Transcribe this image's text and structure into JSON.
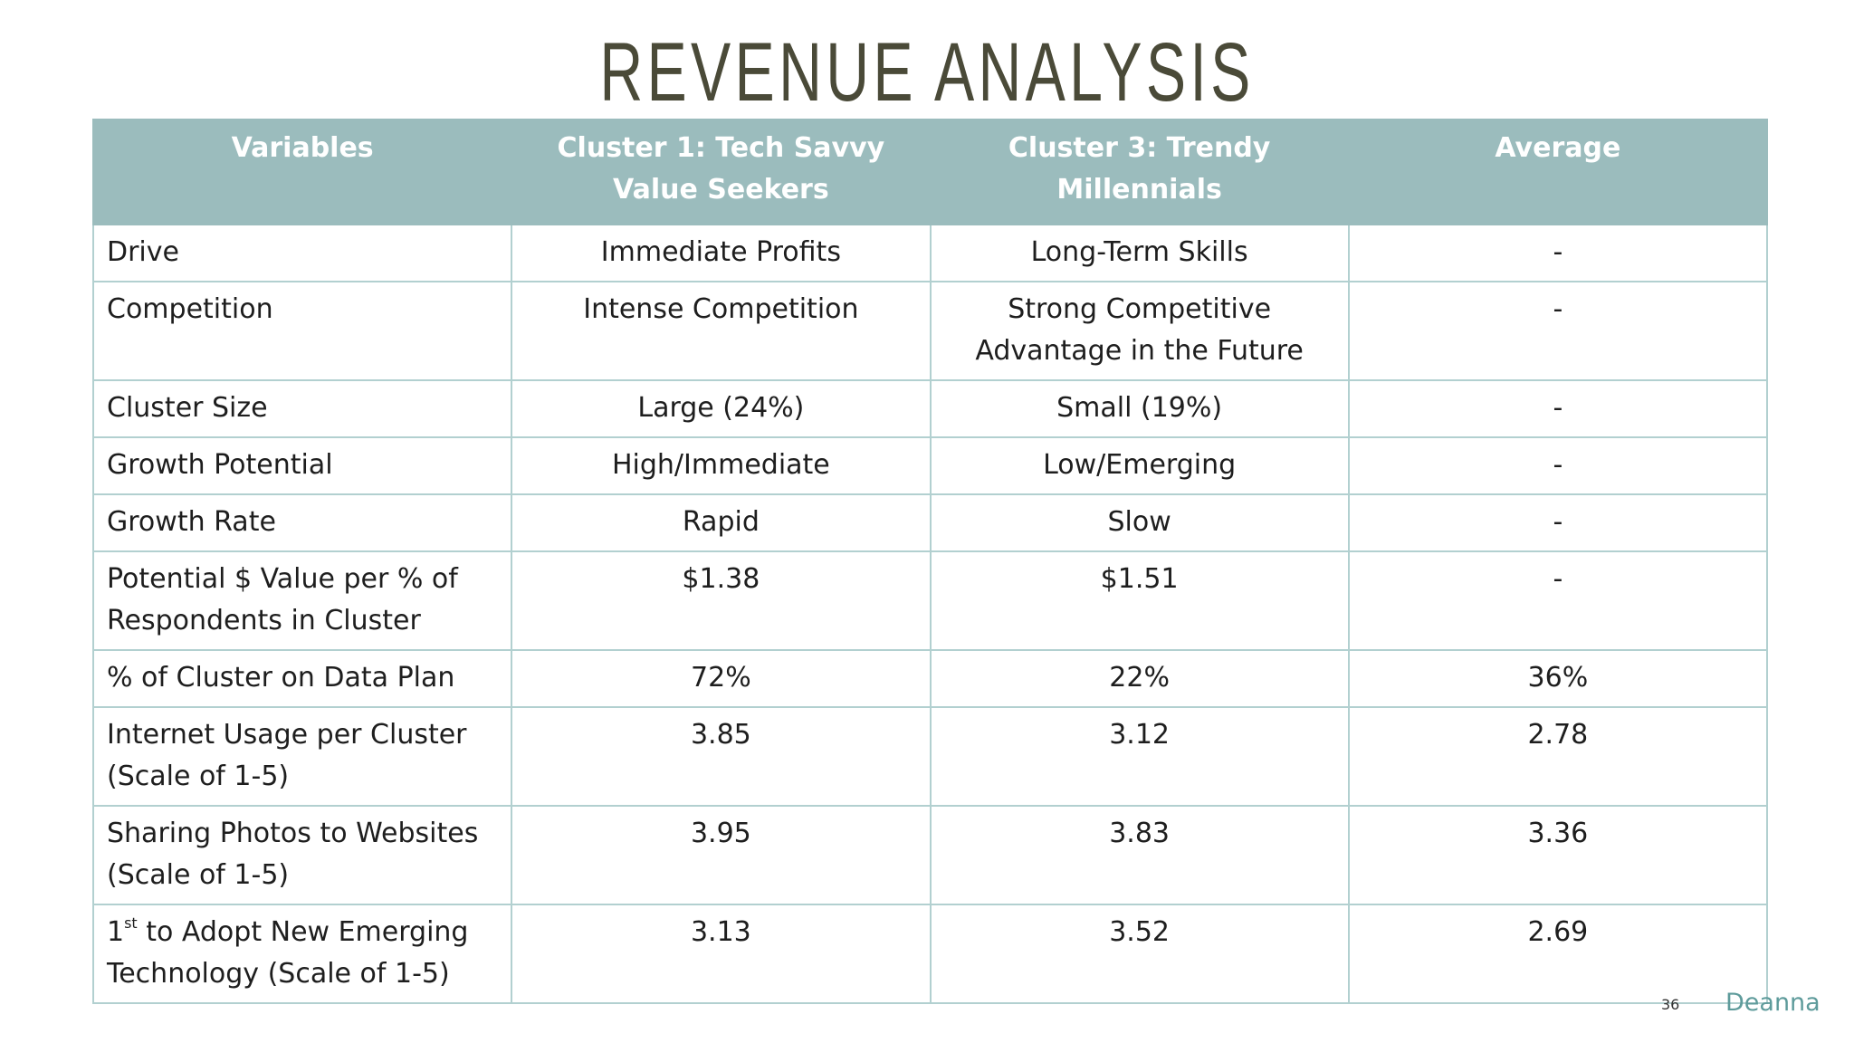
{
  "title": "REVENUE ANALYSIS",
  "table": {
    "header": [
      "Variables",
      "Cluster 1: Tech Savvy Value Seekers",
      "Cluster 3: Trendy Millennials",
      "Average"
    ],
    "rows": [
      [
        "Drive",
        "Immediate Profits",
        "Long-Term Skills",
        "-"
      ],
      [
        "Competition",
        "Intense Competition",
        "Strong Competitive Advantage in the Future",
        "-"
      ],
      [
        "Cluster Size",
        "Large (24%)",
        "Small (19%)",
        "-"
      ],
      [
        "Growth Potential",
        "High/Immediate",
        "Low/Emerging",
        "-"
      ],
      [
        "Growth Rate",
        "Rapid",
        "Slow",
        "-"
      ],
      [
        "Potential $ Value per % of Respondents in Cluster",
        "$1.38",
        "$1.51",
        "-"
      ],
      [
        "% of Cluster on Data Plan",
        "72%",
        "22%",
        "36%"
      ],
      [
        "Internet Usage per Cluster (Scale of 1-5)",
        "3.85",
        "3.12",
        "2.78"
      ],
      [
        "Sharing Photos to Websites (Scale of 1-5)",
        "3.95",
        "3.83",
        "3.36"
      ],
      [
        {
          "main": "1",
          "sup": "st",
          "rest": " to Adopt New Emerging Technology (Scale of 1-5)"
        },
        "3.13",
        "3.52",
        "2.69"
      ]
    ]
  },
  "footer": {
    "page": "36",
    "author": "Deanna"
  }
}
